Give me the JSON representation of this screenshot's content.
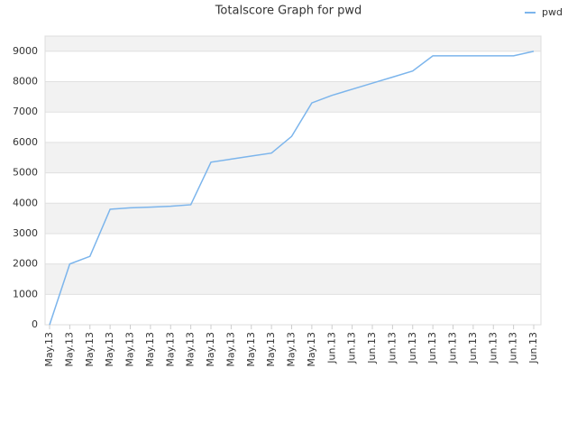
{
  "chart_data": {
    "type": "line",
    "title": "Totalscore Graph for pwd",
    "categories": [
      "May.13",
      "May.13",
      "May.13",
      "May.13",
      "May.13",
      "May.13",
      "May.13",
      "May.13",
      "May.13",
      "May.13",
      "May.13",
      "May.13",
      "May.13",
      "May.13",
      "Jun.13",
      "Jun.13",
      "Jun.13",
      "Jun.13",
      "Jun.13",
      "Jun.13",
      "Jun.13",
      "Jun.13",
      "Jun.13",
      "Jun.13",
      "Jun.13"
    ],
    "series": [
      {
        "name": "pwd",
        "color": "#7cb5ec",
        "values": [
          0,
          2000,
          2250,
          3800,
          3850,
          3870,
          3900,
          3950,
          5350,
          5450,
          5550,
          5650,
          6200,
          7300,
          7550,
          7750,
          7950,
          8150,
          8350,
          8850,
          8850,
          8850,
          8850,
          8850,
          9000
        ]
      }
    ],
    "ylim": [
      0,
      9500
    ],
    "yticks": [
      0,
      1000,
      2000,
      3000,
      4000,
      5000,
      6000,
      7000,
      8000,
      9000
    ],
    "grid": true,
    "alternate_bands": true,
    "legend": "top-right"
  }
}
